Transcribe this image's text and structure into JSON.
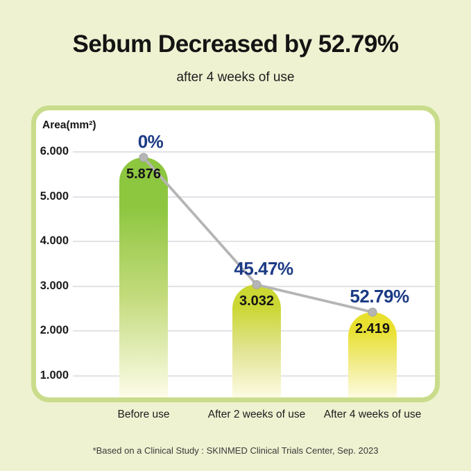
{
  "page": {
    "title": "Sebum Decreased by 52.79%",
    "subtitle": "after 4 weeks of use",
    "footnote": "*Based on a Clinical Study : SKINMED Clinical Trials Center, Sep. 2023"
  },
  "chart_data": {
    "type": "bar",
    "title": "Sebum Decreased by 52.79%",
    "subtitle": "after 4 weeks of use",
    "xlabel": "",
    "ylabel": "Area(mm²)",
    "categories": [
      "Before use",
      "After 2 weeks of use",
      "After 4 weeks of use"
    ],
    "values": [
      5.876,
      3.032,
      2.419
    ],
    "bar_value_labels": [
      "5.876",
      "3.032",
      "2.419"
    ],
    "percent_change_labels": [
      "0%",
      "45.47%",
      "52.79%"
    ],
    "y_tick_labels": [
      "6.000",
      "5.000",
      "4.000",
      "3.000",
      "2.000",
      "1.000"
    ],
    "y_tick_values": [
      6,
      5,
      4,
      3,
      2,
      1
    ],
    "ylim_visible": [
      0.5,
      6.9
    ],
    "grid": true,
    "legend": false,
    "overlay": {
      "type": "line_with_markers",
      "line_color": "#B5B5B5",
      "marker_color": "#B5B5B5",
      "marker_edge_color": "#A3A3A3"
    },
    "colors": {
      "page_background": "#EEF2D1",
      "panel_background": "#FFFFFF",
      "panel_border": "#C9DC8B",
      "gridline": "#E1E2E6",
      "percent_label": "#1C3B85",
      "value_label": "#141414",
      "bars": [
        {
          "top": "#8DC63F",
          "mid": "#C3DB7C",
          "bottom": "#FDFCE8"
        },
        {
          "top": "#CBD733",
          "mid": "#E2E492",
          "bottom": "#FCFBE3"
        },
        {
          "top": "#E8E02E",
          "mid": "#F1EB86",
          "bottom": "#FDFBDF"
        }
      ]
    }
  }
}
